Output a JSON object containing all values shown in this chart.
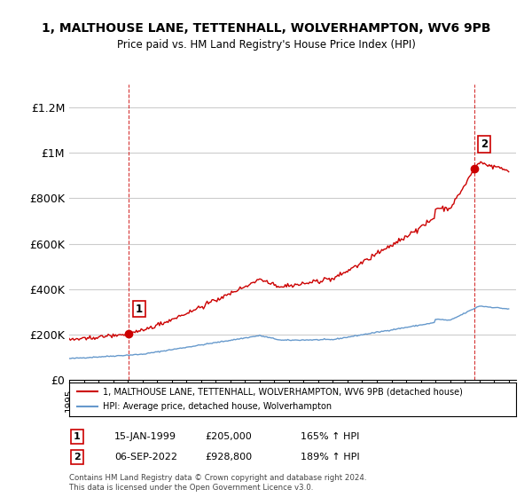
{
  "title": "1, MALTHOUSE LANE, TETTENHALL, WOLVERHAMPTON, WV6 9PB",
  "subtitle": "Price paid vs. HM Land Registry's House Price Index (HPI)",
  "xlim": [
    1995,
    2025.5
  ],
  "ylim": [
    0,
    1300000
  ],
  "yticks": [
    0,
    200000,
    400000,
    600000,
    800000,
    1000000,
    1200000
  ],
  "ytick_labels": [
    "£0",
    "£200K",
    "£400K",
    "£600K",
    "£800K",
    "£1M",
    "£1.2M"
  ],
  "sale1_x": 1999.04,
  "sale1_y": 205000,
  "sale1_label": "1",
  "sale2_x": 2022.68,
  "sale2_y": 928800,
  "sale2_label": "2",
  "hpi_color": "#6699cc",
  "price_color": "#cc0000",
  "sale_dot_color": "#cc0000",
  "background_color": "#ffffff",
  "grid_color": "#cccccc",
  "legend1_text": "1, MALTHOUSE LANE, TETTENHALL, WOLVERHAMPTON, WV6 9PB (detached house)",
  "legend2_text": "HPI: Average price, detached house, Wolverhampton",
  "annotation1_date": "15-JAN-1999",
  "annotation1_price": "£205,000",
  "annotation1_hpi": "165% ↑ HPI",
  "annotation2_date": "06-SEP-2022",
  "annotation2_price": "£928,800",
  "annotation2_hpi": "189% ↑ HPI",
  "footnote": "Contains HM Land Registry data © Crown copyright and database right 2024.\nThis data is licensed under the Open Government Licence v3.0."
}
